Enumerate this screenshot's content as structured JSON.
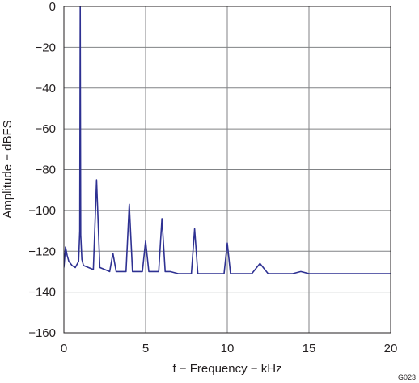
{
  "chart_data": {
    "type": "line",
    "xlabel": "f − Frequency − kHz",
    "ylabel": "Amplitude − dBFS",
    "xlim": [
      0,
      20
    ],
    "ylim": [
      -160,
      0
    ],
    "xticks": [
      0,
      5,
      10,
      15,
      20
    ],
    "yticks": [
      0,
      -20,
      -40,
      -60,
      -80,
      -100,
      -120,
      -140,
      -160
    ],
    "xtick_labels": [
      "0",
      "5",
      "10",
      "15",
      "20"
    ],
    "ytick_labels": [
      "0",
      "−20",
      "−40",
      "−60",
      "−80",
      "−100",
      "−120",
      "−140",
      "−160"
    ],
    "grid": true,
    "series_color": "#2e3192",
    "series": [
      {
        "x": [
          0.0,
          0.1,
          0.2,
          0.3,
          0.5,
          0.7,
          0.9,
          0.97,
          1.0,
          1.03,
          1.1,
          1.2,
          1.5,
          1.8,
          2.0,
          2.2,
          2.5,
          2.8,
          3.0,
          3.2,
          3.5,
          3.8,
          4.0,
          4.2,
          4.5,
          4.8,
          5.0,
          5.2,
          5.5,
          5.8,
          6.0,
          6.2,
          6.5,
          7.0,
          7.5,
          7.8,
          8.0,
          8.2,
          8.5,
          9.0,
          9.5,
          9.8,
          10.0,
          10.2,
          10.5,
          11.0,
          11.5,
          12.0,
          12.5,
          13.0,
          13.5,
          14.0,
          14.5,
          15.0,
          15.5,
          16.0,
          16.5,
          17.0,
          17.5,
          18.0,
          18.5,
          19.0,
          19.5,
          20.0
        ],
        "y": [
          -128,
          -118,
          -122,
          -125,
          -127,
          -128,
          -125,
          -110,
          0,
          -112,
          -124,
          -127,
          -128,
          -129,
          -85,
          -128,
          -129,
          -130,
          -121,
          -130,
          -130,
          -130,
          -97,
          -130,
          -130,
          -130,
          -115,
          -130,
          -130,
          -130,
          -104,
          -130,
          -130,
          -131,
          -131,
          -131,
          -109,
          -131,
          -131,
          -131,
          -131,
          -131,
          -116,
          -131,
          -131,
          -131,
          -131,
          -126,
          -131,
          -131,
          -131,
          -131,
          -130,
          -131,
          -131,
          -131,
          -131,
          -131,
          -131,
          -131,
          -131,
          -131,
          -131,
          -131
        ]
      }
    ],
    "figure_code": "G023"
  }
}
